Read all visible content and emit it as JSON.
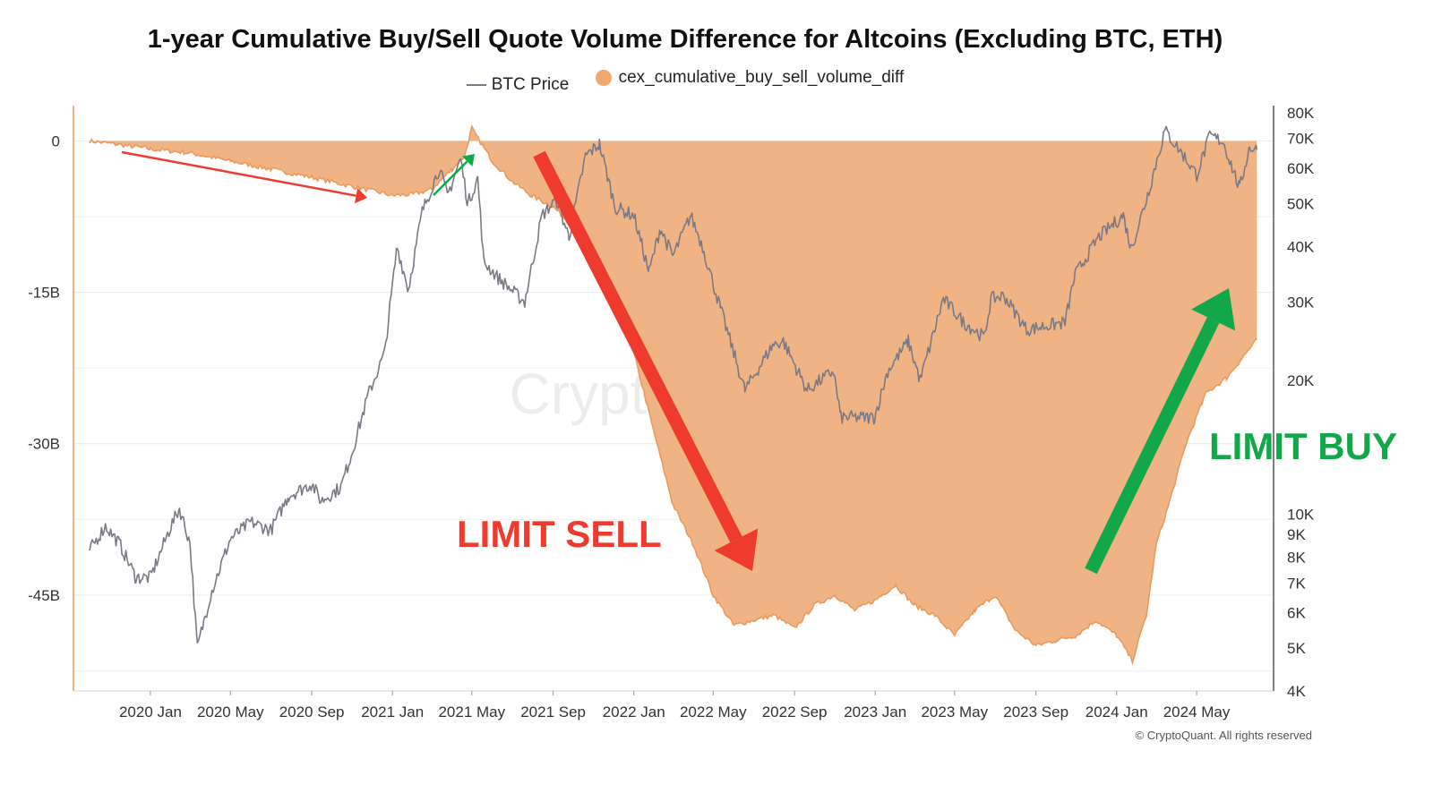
{
  "title": "1-year Cumulative Buy/Sell Quote Volume Difference for Altcoins (Excluding BTC, ETH)",
  "copyright": "© CryptoQuant. All rights reserved",
  "watermark": "CryptoQuant",
  "colors": {
    "area_fill": "#f0b383",
    "area_stroke": "#eb9a5e",
    "price_line": "#7a7a86",
    "sell": "#ee3b2e",
    "buy": "#12a84a"
  },
  "chart_data": {
    "type": "area",
    "title": "1-year Cumulative Buy/Sell Quote Volume Difference for Altcoins (Excluding BTC, ETH)",
    "x_tick_labels": [
      "2020 Jan",
      "2020 May",
      "2020 Sep",
      "2021 Jan",
      "2021 May",
      "2021 Sep",
      "2022 Jan",
      "2022 May",
      "2022 Sep",
      "2023 Jan",
      "2023 May",
      "2023 Sep",
      "2024 Jan",
      "2024 May"
    ],
    "x_tick_dates": [
      "2020-01-01",
      "2020-05-01",
      "2020-09-01",
      "2021-01-01",
      "2021-05-01",
      "2021-09-01",
      "2022-01-01",
      "2022-05-01",
      "2022-09-01",
      "2023-01-01",
      "2023-05-01",
      "2023-09-01",
      "2024-01-01",
      "2024-05-01"
    ],
    "x_range": [
      "2019-10-01",
      "2024-08-01"
    ],
    "left_axis": {
      "tick_labels": [
        "0",
        "-15B",
        "-30B",
        "-45B"
      ],
      "tick_values": [
        0,
        -15,
        -30,
        -45
      ],
      "unit": "B",
      "range": [
        -54.5,
        3.5
      ]
    },
    "right_axis": {
      "scale": "log",
      "tick_labels": [
        "80K",
        "70K",
        "60K",
        "50K",
        "40K",
        "30K",
        "20K",
        "10K",
        "9K",
        "8K",
        "7K",
        "6K",
        "5K",
        "4K"
      ],
      "tick_values": [
        80000,
        70000,
        60000,
        50000,
        40000,
        30000,
        20000,
        10000,
        9000,
        8000,
        7000,
        6000,
        5000,
        4000
      ],
      "range": [
        4000,
        83000
      ]
    },
    "grid": "horizontal",
    "legend_position": "top-center",
    "series": [
      {
        "name": "BTC Price",
        "type": "line",
        "axis": "right",
        "points": [
          [
            "2019-10-01",
            8300
          ],
          [
            "2019-10-25",
            9400
          ],
          [
            "2019-11-15",
            8600
          ],
          [
            "2019-12-10",
            7200
          ],
          [
            "2020-01-01",
            7200
          ],
          [
            "2020-02-01",
            9400
          ],
          [
            "2020-02-14",
            10300
          ],
          [
            "2020-03-01",
            8600
          ],
          [
            "2020-03-12",
            5000
          ],
          [
            "2020-04-01",
            6600
          ],
          [
            "2020-05-01",
            8800
          ],
          [
            "2020-06-01",
            9600
          ],
          [
            "2020-07-01",
            9200
          ],
          [
            "2020-07-28",
            11000
          ],
          [
            "2020-09-01",
            11700
          ],
          [
            "2020-09-15",
            10700
          ],
          [
            "2020-10-15",
            11500
          ],
          [
            "2020-11-01",
            13800
          ],
          [
            "2020-11-25",
            18500
          ],
          [
            "2020-12-20",
            23000
          ],
          [
            "2021-01-08",
            40000
          ],
          [
            "2021-01-25",
            32000
          ],
          [
            "2021-02-15",
            48000
          ],
          [
            "2021-03-13",
            60000
          ],
          [
            "2021-03-25",
            52000
          ],
          [
            "2021-04-14",
            63000
          ],
          [
            "2021-04-25",
            50000
          ],
          [
            "2021-05-10",
            57000
          ],
          [
            "2021-05-19",
            37000
          ],
          [
            "2021-06-10",
            34000
          ],
          [
            "2021-07-20",
            30000
          ],
          [
            "2021-08-15",
            47000
          ],
          [
            "2021-09-06",
            51000
          ],
          [
            "2021-09-25",
            42000
          ],
          [
            "2021-10-20",
            64000
          ],
          [
            "2021-11-10",
            68000
          ],
          [
            "2021-12-04",
            49000
          ],
          [
            "2022-01-01",
            47000
          ],
          [
            "2022-01-24",
            35000
          ],
          [
            "2022-02-10",
            44000
          ],
          [
            "2022-03-01",
            38000
          ],
          [
            "2022-03-28",
            47000
          ],
          [
            "2022-04-15",
            40000
          ],
          [
            "2022-05-12",
            29000
          ],
          [
            "2022-06-18",
            19000
          ],
          [
            "2022-07-30",
            24000
          ],
          [
            "2022-08-15",
            24500
          ],
          [
            "2022-09-20",
            19000
          ],
          [
            "2022-10-30",
            21000
          ],
          [
            "2022-11-10",
            16500
          ],
          [
            "2022-12-31",
            16500
          ],
          [
            "2023-01-20",
            21000
          ],
          [
            "2023-02-20",
            24500
          ],
          [
            "2023-03-10",
            20000
          ],
          [
            "2023-04-14",
            30500
          ],
          [
            "2023-05-15",
            27000
          ],
          [
            "2023-06-15",
            25000
          ],
          [
            "2023-06-25",
            30500
          ],
          [
            "2023-07-15",
            31000
          ],
          [
            "2023-08-18",
            26000
          ],
          [
            "2023-09-15",
            26500
          ],
          [
            "2023-10-15",
            27000
          ],
          [
            "2023-10-30",
            34500
          ],
          [
            "2023-12-05",
            42000
          ],
          [
            "2024-01-11",
            47000
          ],
          [
            "2024-01-23",
            39500
          ],
          [
            "2024-02-15",
            51000
          ],
          [
            "2024-03-14",
            73000
          ],
          [
            "2024-04-15",
            63000
          ],
          [
            "2024-05-01",
            58000
          ],
          [
            "2024-05-21",
            71000
          ],
          [
            "2024-06-10",
            69000
          ],
          [
            "2024-07-05",
            54000
          ],
          [
            "2024-07-20",
            67000
          ],
          [
            "2024-07-31",
            66000
          ]
        ]
      },
      {
        "name": "cex_cumulative_buy_sell_volume_diff",
        "type": "area",
        "axis": "left",
        "points": [
          [
            "2019-10-01",
            0
          ],
          [
            "2019-12-01",
            -0.5
          ],
          [
            "2020-01-01",
            -0.8
          ],
          [
            "2020-03-01",
            -1.2
          ],
          [
            "2020-05-01",
            -2.0
          ],
          [
            "2020-07-01",
            -2.8
          ],
          [
            "2020-09-01",
            -3.6
          ],
          [
            "2020-11-01",
            -4.5
          ],
          [
            "2021-01-01",
            -5.4
          ],
          [
            "2021-02-01",
            -5.3
          ],
          [
            "2021-03-01",
            -4.8
          ],
          [
            "2021-04-01",
            -2.8
          ],
          [
            "2021-04-20",
            -1.5
          ],
          [
            "2021-05-01",
            1.3
          ],
          [
            "2021-05-05",
            0.8
          ],
          [
            "2021-06-01",
            -2.0
          ],
          [
            "2021-07-01",
            -4.0
          ],
          [
            "2021-08-01",
            -5.5
          ],
          [
            "2021-09-01",
            -6.5
          ],
          [
            "2021-10-01",
            -8.5
          ],
          [
            "2021-11-01",
            -12.0
          ],
          [
            "2021-12-01",
            -15.0
          ],
          [
            "2022-01-01",
            -21.0
          ],
          [
            "2022-02-01",
            -29.0
          ],
          [
            "2022-03-01",
            -36.0
          ],
          [
            "2022-04-01",
            -40.0
          ],
          [
            "2022-05-01",
            -45.0
          ],
          [
            "2022-06-01",
            -48.0
          ],
          [
            "2022-07-01",
            -47.5
          ],
          [
            "2022-08-01",
            -47.0
          ],
          [
            "2022-09-01",
            -48.3
          ],
          [
            "2022-10-01",
            -46.0
          ],
          [
            "2022-11-01",
            -45.0
          ],
          [
            "2022-12-01",
            -46.5
          ],
          [
            "2023-01-01",
            -45.5
          ],
          [
            "2023-02-01",
            -44.0
          ],
          [
            "2023-03-01",
            -46.0
          ],
          [
            "2023-04-01",
            -47.0
          ],
          [
            "2023-05-01",
            -49.0
          ],
          [
            "2023-06-01",
            -46.5
          ],
          [
            "2023-07-01",
            -45.0
          ],
          [
            "2023-08-01",
            -48.5
          ],
          [
            "2023-09-01",
            -50.0
          ],
          [
            "2023-10-01",
            -49.5
          ],
          [
            "2023-11-01",
            -49.0
          ],
          [
            "2023-12-01",
            -47.5
          ],
          [
            "2024-01-01",
            -49.0
          ],
          [
            "2024-01-25",
            -51.5
          ],
          [
            "2024-02-15",
            -47.0
          ],
          [
            "2024-03-01",
            -40.0
          ],
          [
            "2024-03-20",
            -36.0
          ],
          [
            "2024-04-15",
            -30.0
          ],
          [
            "2024-05-15",
            -25.0
          ],
          [
            "2024-06-15",
            -23.5
          ],
          [
            "2024-07-15",
            -21.0
          ],
          [
            "2024-07-31",
            -19.7
          ]
        ]
      }
    ],
    "annotations": [
      {
        "text": "LIMIT SELL",
        "color": "#ee3b2e",
        "arrow": "down"
      },
      {
        "text": "LIMIT BUY",
        "color": "#12a84a",
        "arrow": "up"
      }
    ]
  }
}
